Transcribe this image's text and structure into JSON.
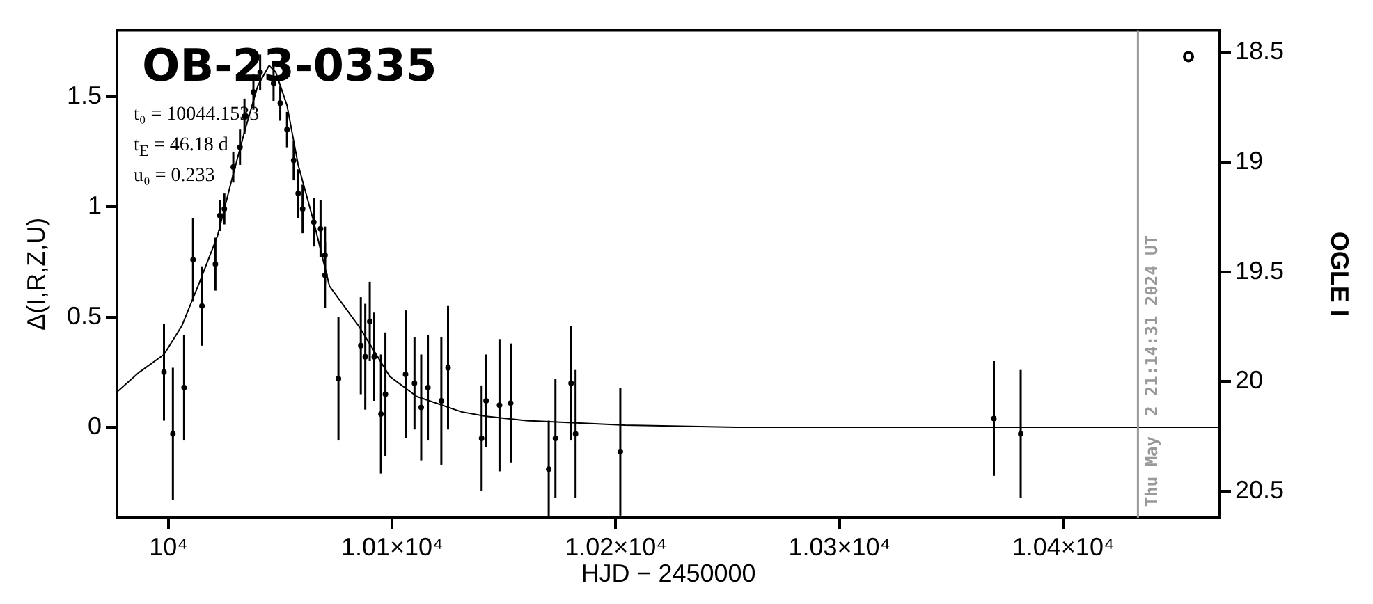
{
  "chart_data": {
    "type": "scatter",
    "title": "OB-23-0335",
    "xlabel": "HJD − 2450000",
    "ylabel": "Δ(I,R,Z,U)",
    "y2label": "OGLE I",
    "annotations": [
      "t₀ = 10044.1533",
      "t$_{E}$ = 46.18 d",
      "u₀ = 0.233",
      "Thu May  2 21:14:31 2024 UT"
    ],
    "xlim": [
      9977,
      10470
    ],
    "xticks": [
      {
        "value": 10000,
        "label": "10⁴"
      },
      {
        "value": 10100,
        "label": "1.01×10⁴"
      },
      {
        "value": 10200,
        "label": "1.02×10⁴"
      },
      {
        "value": 10300,
        "label": "1.03×10⁴"
      },
      {
        "value": 10400,
        "label": "1.04×10⁴"
      }
    ],
    "ylim": [
      -0.41,
      1.8
    ],
    "yticks": [
      0,
      0.5,
      1,
      1.5
    ],
    "y2lim": [
      20.62,
      18.4
    ],
    "y2ticks": [
      18.5,
      19,
      19.5,
      20,
      20.5
    ],
    "grid": false,
    "legend": false,
    "marker": "circle",
    "ref_lines": [
      {
        "axis": "x",
        "value": 10433.4,
        "color": "#999999"
      }
    ],
    "series": [
      {
        "color": "#000000",
        "x": [
          9998,
          10002,
          10007,
          10011,
          10015,
          10021,
          10023,
          10025,
          10029,
          10032,
          10034,
          10038,
          10041,
          10047,
          10050,
          10053,
          10056,
          10058,
          10060,
          10065,
          10068,
          10070,
          10070,
          10076,
          10086,
          10088,
          10090,
          10092,
          10095,
          10097,
          10106,
          10110,
          10113,
          10116,
          10122,
          10125,
          10140,
          10142,
          10148,
          10153,
          10170,
          10173,
          10180,
          10182,
          10202,
          10369,
          10381
        ],
        "values": [
          0.25,
          -0.03,
          0.18,
          0.76,
          0.55,
          0.74,
          0.96,
          0.99,
          1.18,
          1.27,
          1.41,
          1.52,
          1.61,
          1.56,
          1.47,
          1.35,
          1.21,
          1.06,
          0.99,
          0.93,
          0.9,
          0.78,
          0.69,
          0.22,
          0.37,
          0.32,
          0.48,
          0.32,
          0.06,
          0.15,
          0.24,
          0.2,
          0.09,
          0.18,
          0.12,
          0.27,
          -0.05,
          0.12,
          0.1,
          0.11,
          -0.19,
          -0.05,
          0.2,
          -0.03,
          -0.11,
          0.04,
          -0.03
        ],
        "errors": [
          0.22,
          0.3,
          0.24,
          0.19,
          0.18,
          0.12,
          0.07,
          0.07,
          0.07,
          0.08,
          0.08,
          0.08,
          0.08,
          0.08,
          0.08,
          0.08,
          0.09,
          0.11,
          0.11,
          0.11,
          0.13,
          0.13,
          0.15,
          0.28,
          0.22,
          0.24,
          0.18,
          0.2,
          0.27,
          0.28,
          0.29,
          0.21,
          0.24,
          0.24,
          0.29,
          0.28,
          0.24,
          0.21,
          0.3,
          0.27,
          0.22,
          0.27,
          0.26,
          0.29,
          0.29,
          0.26,
          0.29
        ]
      },
      {
        "type": "line",
        "color": "#000000",
        "marker": "none",
        "x": [
          9977,
          9987,
          9998,
          10006,
          10014,
          10022,
          10028,
          10034,
          10040,
          10045,
          10048,
          10053,
          10058,
          10065,
          10072,
          10085,
          10099,
          10111,
          10131,
          10142,
          10160,
          10204,
          10254,
          10357,
          10470
        ],
        "values": [
          0.16,
          0.25,
          0.33,
          0.46,
          0.66,
          0.87,
          1.11,
          1.34,
          1.55,
          1.64,
          1.61,
          1.46,
          1.19,
          0.93,
          0.64,
          0.46,
          0.23,
          0.14,
          0.07,
          0.05,
          0.03,
          0.01,
          0,
          0,
          0
        ]
      },
      {
        "type": "scatter",
        "axis": "y2",
        "color": "#000000",
        "x": [
          10456
        ],
        "values": [
          18.52
        ]
      }
    ]
  }
}
